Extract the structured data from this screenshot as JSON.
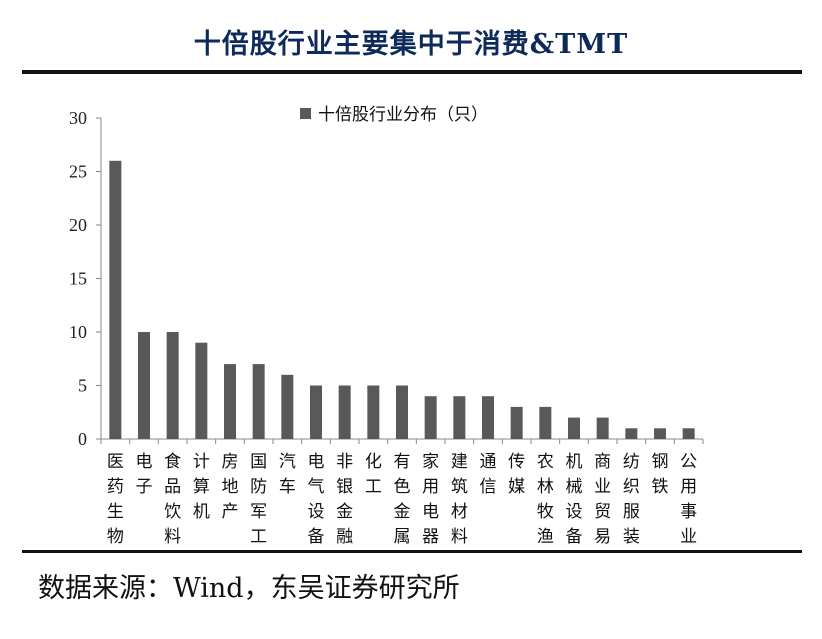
{
  "title": "十倍股行业主要集中于消费&TMT",
  "source": "数据来源：Wind，东吴证券研究所",
  "chart_data": {
    "type": "bar",
    "categories": [
      "医药生物",
      "电子",
      "食品饮料",
      "计算机",
      "房地产",
      "国防军工",
      "汽车",
      "电气设备",
      "非银金融",
      "化工",
      "有色金属",
      "家用电器",
      "建筑材料",
      "通信",
      "传媒",
      "农林牧渔",
      "机械设备",
      "商业贸易",
      "纺织服装",
      "钢铁",
      "公用事业"
    ],
    "series": [
      {
        "name": "十倍股行业分布（只）",
        "values": [
          26,
          10,
          10,
          9,
          7,
          7,
          6,
          5,
          5,
          5,
          5,
          4,
          4,
          4,
          3,
          3,
          2,
          2,
          1,
          1,
          1
        ]
      }
    ],
    "yticks": [
      0,
      5,
      10,
      15,
      20,
      25,
      30
    ],
    "ylim": [
      0,
      30
    ],
    "bar_color": "#595959",
    "grid": false,
    "legend": "top-center"
  }
}
